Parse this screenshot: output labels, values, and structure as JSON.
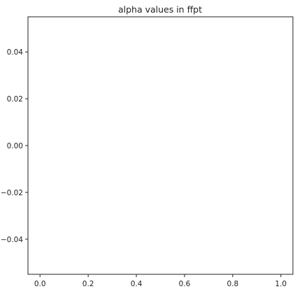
{
  "chart_data": {
    "type": "line",
    "title": "alpha values in ffpt",
    "xlabel": "",
    "ylabel": "",
    "xlim": [
      -0.05,
      1.05
    ],
    "ylim": [
      -0.055,
      0.055
    ],
    "xticks": [
      0.0,
      0.2,
      0.4,
      0.6,
      0.8,
      1.0
    ],
    "xtick_labels": [
      "0.0",
      "0.2",
      "0.4",
      "0.6",
      "0.8",
      "1.0"
    ],
    "yticks": [
      -0.04,
      -0.02,
      0.0,
      0.02,
      0.04
    ],
    "ytick_labels": [
      "−0.04",
      "−0.02",
      "0.00",
      "0.02",
      "0.04"
    ],
    "series": [],
    "grid": false,
    "legend": "none",
    "colors": {
      "axes": "#222222",
      "background": "#ffffff"
    }
  }
}
